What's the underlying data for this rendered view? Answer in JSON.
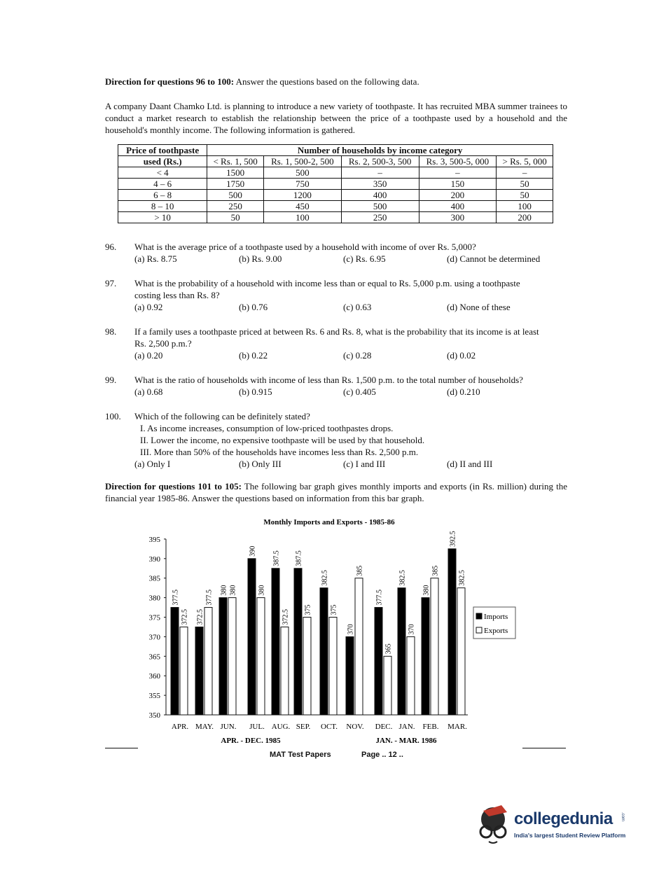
{
  "dir1": {
    "bold": "Direction for questions 96 to 100:",
    "text": " Answer the questions based on the following data."
  },
  "intro": "A company Daant Chamko Ltd. is planning to introduce a new variety of toothpaste. It has recruited MBA summer trainees to conduct a market research to establish the relationship between the price of a toothpaste used by a household and the household's monthly income. The following information is gathered.",
  "table": {
    "header1": "Price of toothpaste",
    "header1b": "used (Rs.)",
    "group": "Number of households by income category",
    "cols": [
      "< Rs. 1, 500",
      "Rs. 1, 500-2, 500",
      "Rs. 2, 500-3, 500",
      "Rs. 3, 500-5, 000",
      "> Rs. 5, 000"
    ],
    "rows": [
      [
        "< 4",
        "1500",
        "500",
        "–",
        "–",
        "–"
      ],
      [
        "4 – 6",
        "1750",
        "750",
        "350",
        "150",
        "50"
      ],
      [
        "6 – 8",
        "500",
        "1200",
        "400",
        "200",
        "50"
      ],
      [
        "8 – 10",
        "250",
        "450",
        "500",
        "400",
        "100"
      ],
      [
        "> 10",
        "50",
        "100",
        "250",
        "300",
        "200"
      ]
    ]
  },
  "questions": [
    {
      "n": "96.",
      "text": [
        "What is the average price of a toothpaste used by a household with income of over Rs. 5,000?"
      ],
      "opts": [
        "(a) Rs. 8.75",
        "(b) Rs. 9.00",
        "(c) Rs. 6.95",
        "(d) Cannot be determined"
      ]
    },
    {
      "n": "97.",
      "text": [
        "What is the probability of a household with income less than or equal to Rs. 5,000 p.m. using a toothpaste",
        "costing less than Rs. 8?"
      ],
      "opts": [
        "(a) 0.92",
        "(b) 0.76",
        "(c) 0.63",
        "(d) None of these"
      ]
    },
    {
      "n": "98.",
      "text": [
        "If a family uses a toothpaste priced at between Rs. 6 and Rs. 8, what is the probability that its income is at least",
        "Rs. 2,500 p.m.?"
      ],
      "opts": [
        "(a) 0.20",
        "(b) 0.22",
        "(c) 0.28",
        "(d) 0.02"
      ]
    },
    {
      "n": "99.",
      "text": [
        "What is the ratio of households with income of less than Rs. 1,500 p.m. to the total number of households?"
      ],
      "opts": [
        "(a) 0.68",
        "(b) 0.915",
        "(c) 0.405",
        "(d) 0.210"
      ]
    },
    {
      "n": "100.",
      "text": [
        "Which of the following can be definitely stated?",
        "I.   As income increases, consumption of low-priced toothpastes drops.",
        "II.  Lower the income, no expensive toothpaste will be used by that household.",
        "III. More than 50% of the households have incomes less than Rs. 2,500 p.m."
      ],
      "opts": [
        "(a) Only I",
        "(b) Only III",
        "(c) I and III",
        "(d) II and III"
      ]
    }
  ],
  "dir2": {
    "bold": "Direction for questions 101 to 105:",
    "text": " The following bar graph gives monthly imports and exports (in Rs. million) during the financial year 1985-86. Answer the questions based on information from this bar graph."
  },
  "chart_data": {
    "type": "bar",
    "title": "Monthly Imports and Exports - 1985-86",
    "categories": [
      "APR.",
      "MAY.",
      "JUN.",
      "JUL.",
      "AUG.",
      "SEP.",
      "OCT.",
      "NOV.",
      "DEC.",
      "JAN.",
      "FEB.",
      "MAR."
    ],
    "series": [
      {
        "name": "Imports",
        "color": "#000000",
        "values": [
          377.5,
          372.5,
          380,
          390,
          387.5,
          387.5,
          382.5,
          370,
          377.5,
          382.5,
          380,
          392.5
        ]
      },
      {
        "name": "Exports",
        "color": "#ffffff",
        "values": [
          372.5,
          377.5,
          380,
          380,
          372.5,
          375,
          375,
          385,
          365,
          370,
          385,
          382.5
        ]
      }
    ],
    "ylim": [
      350,
      395
    ],
    "yticks": [
      350,
      355,
      360,
      365,
      370,
      375,
      380,
      385,
      390,
      395
    ],
    "group_labels": [
      "APR. - DEC. 1985",
      "JAN. - MAR. 1986"
    ],
    "legend": "right",
    "grid": false
  },
  "footer": {
    "left": "MAT Test Papers",
    "right": "Page .. 12 .."
  },
  "logo": {
    "name": "collegedunia",
    "tagline": "India's largest Student Review Platform",
    "suffix": ".com"
  }
}
